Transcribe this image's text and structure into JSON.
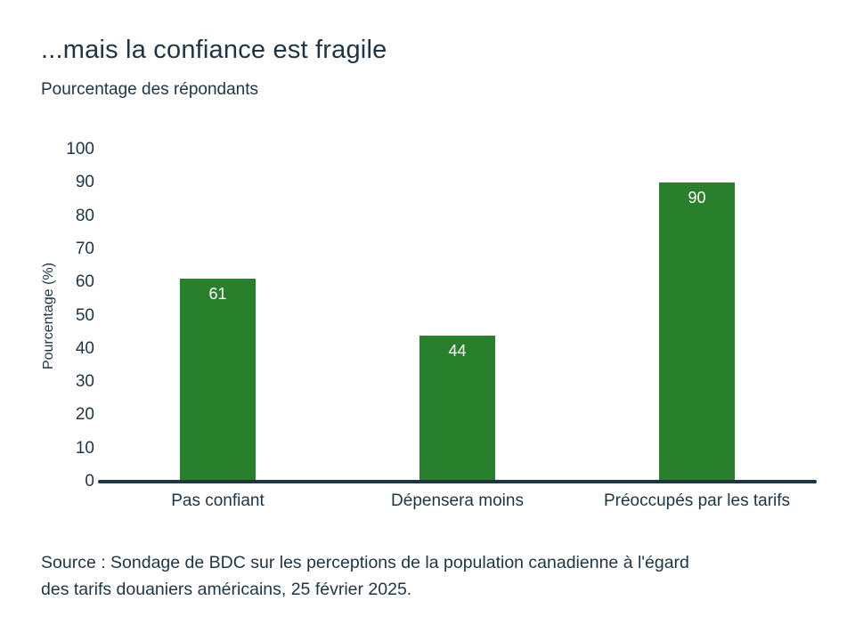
{
  "chart_data": {
    "type": "bar",
    "title": "...mais la confiance est fragile",
    "subtitle": "Pourcentage des répondants",
    "ylabel": "Pourcentage (%)",
    "categories": [
      "Pas confiant",
      "Dépensera moins",
      "Préoccupés par les tarifs"
    ],
    "values": [
      61,
      44,
      90
    ],
    "value_labels": [
      "61",
      "44",
      "90"
    ],
    "yticks": [
      0,
      10,
      20,
      30,
      40,
      50,
      60,
      70,
      80,
      90,
      100
    ],
    "ylim": [
      0,
      100
    ],
    "grid": false,
    "legend": "none",
    "bar_color": "#28802d",
    "text_color": "#1d3544",
    "value_label_color": "#ffffff"
  },
  "source": {
    "line1": "Source : Sondage de BDC sur les perceptions de la population canadienne à l'égard",
    "line2": "des tarifs douaniers américains, 25 février 2025."
  }
}
